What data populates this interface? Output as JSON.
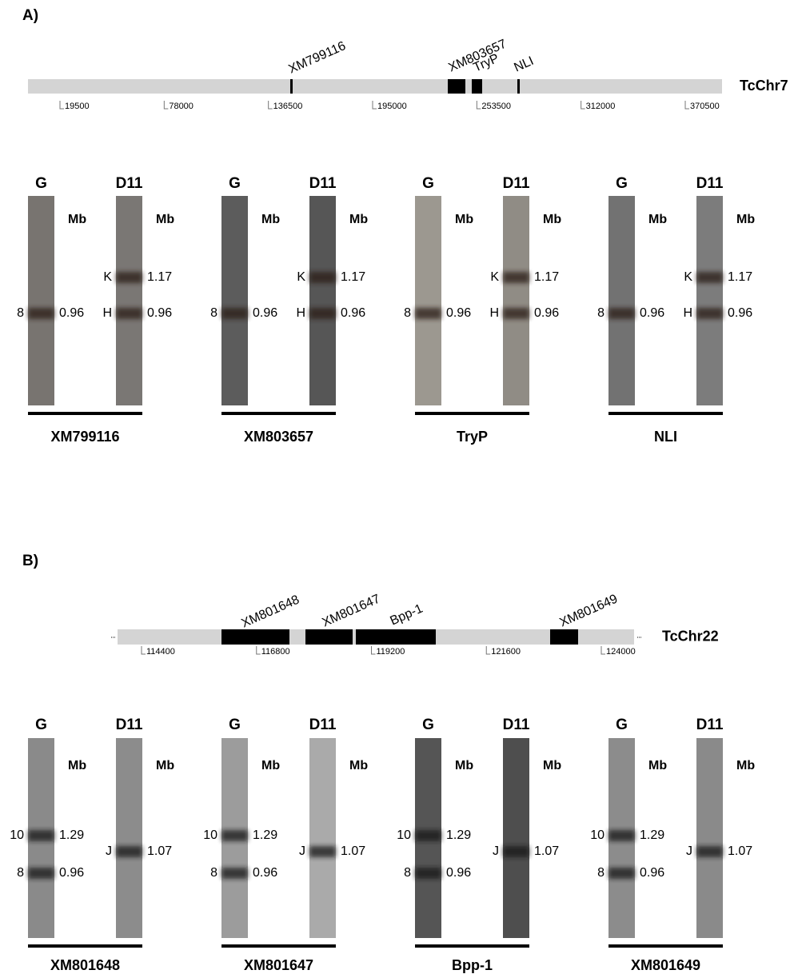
{
  "panels": [
    {
      "label": "A)",
      "chromosome": {
        "name": "TcChr7",
        "ticks": [
          19500,
          78000,
          136500,
          195000,
          253500,
          312000,
          370500
        ],
        "genes": [
          "XM799116",
          "XM803657",
          "TryP",
          "NLI"
        ]
      },
      "blots": [
        {
          "gene": "XM799116",
          "lanes": [
            {
              "strain": "G",
              "unit": "Mb",
              "bands": [
                {
                  "name": "8",
                  "size": 0.96
                }
              ]
            },
            {
              "strain": "D11",
              "unit": "Mb",
              "bands": [
                {
                  "name": "K",
                  "size": 1.17
                },
                {
                  "name": "H",
                  "size": 0.96
                }
              ]
            }
          ]
        },
        {
          "gene": "XM803657",
          "lanes": [
            {
              "strain": "G",
              "unit": "Mb",
              "bands": [
                {
                  "name": "8",
                  "size": 0.96
                }
              ]
            },
            {
              "strain": "D11",
              "unit": "Mb",
              "bands": [
                {
                  "name": "K",
                  "size": 1.17
                },
                {
                  "name": "H",
                  "size": 0.96
                }
              ]
            }
          ]
        },
        {
          "gene": "TryP",
          "lanes": [
            {
              "strain": "G",
              "unit": "Mb",
              "bands": [
                {
                  "name": "8",
                  "size": 0.96
                }
              ]
            },
            {
              "strain": "D11",
              "unit": "Mb",
              "bands": [
                {
                  "name": "K",
                  "size": 1.17
                },
                {
                  "name": "H",
                  "size": 0.96
                }
              ]
            }
          ]
        },
        {
          "gene": "NLI",
          "lanes": [
            {
              "strain": "G",
              "unit": "Mb",
              "bands": [
                {
                  "name": "8",
                  "size": 0.96
                }
              ]
            },
            {
              "strain": "D11",
              "unit": "Mb",
              "bands": [
                {
                  "name": "K",
                  "size": 1.17
                },
                {
                  "name": "H",
                  "size": 0.96
                }
              ]
            }
          ]
        }
      ]
    },
    {
      "label": "B)",
      "chromosome": {
        "name": "TcChr22",
        "ticks": [
          114400,
          116800,
          119200,
          121600,
          124000
        ],
        "genes": [
          "XM801648",
          "XM801647",
          "Bpp-1",
          "XM801649"
        ]
      },
      "blots": [
        {
          "gene": "XM801648",
          "lanes": [
            {
              "strain": "G",
              "unit": "Mb",
              "bands": [
                {
                  "name": "10",
                  "size": 1.29
                },
                {
                  "name": "8",
                  "size": 0.96
                }
              ]
            },
            {
              "strain": "D11",
              "unit": "Mb",
              "bands": [
                {
                  "name": "J",
                  "size": 1.07
                }
              ]
            }
          ]
        },
        {
          "gene": "XM801647",
          "lanes": [
            {
              "strain": "G",
              "unit": "Mb",
              "bands": [
                {
                  "name": "10",
                  "size": 1.29
                },
                {
                  "name": "8",
                  "size": 0.96
                }
              ]
            },
            {
              "strain": "D11",
              "unit": "Mb",
              "bands": [
                {
                  "name": "J",
                  "size": 1.07
                }
              ]
            }
          ]
        },
        {
          "gene": "Bpp-1",
          "lanes": [
            {
              "strain": "G",
              "unit": "Mb",
              "bands": [
                {
                  "name": "10",
                  "size": 1.29
                },
                {
                  "name": "8",
                  "size": 0.96
                }
              ]
            },
            {
              "strain": "D11",
              "unit": "Mb",
              "bands": [
                {
                  "name": "J",
                  "size": 1.07
                }
              ]
            }
          ]
        },
        {
          "gene": "XM801649",
          "lanes": [
            {
              "strain": "G",
              "unit": "Mb",
              "bands": [
                {
                  "name": "10",
                  "size": 1.29
                },
                {
                  "name": "8",
                  "size": 0.96
                }
              ]
            },
            {
              "strain": "D11",
              "unit": "Mb",
              "bands": [
                {
                  "name": "J",
                  "size": 1.07
                }
              ]
            }
          ]
        }
      ]
    }
  ]
}
